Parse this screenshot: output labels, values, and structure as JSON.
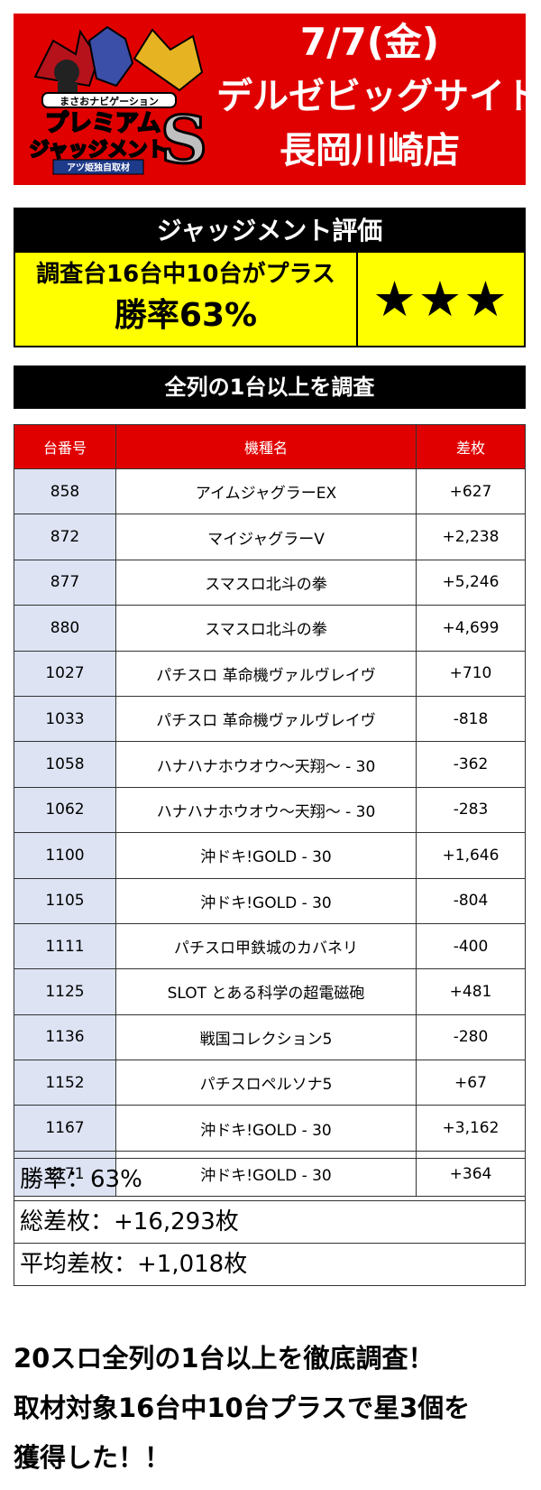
{
  "header": {
    "logo_text_top": "まさおナビゲーション",
    "logo_text_main1": "プレミアム",
    "logo_text_main2": "ジャッジメント",
    "logo_letter": "S",
    "logo_banner": "アツ姫独自取材",
    "date": "7/7(金)",
    "store": "デルゼビッグサイト",
    "branch": "長岡川崎店"
  },
  "judgement": {
    "title": "ジャッジメント評価",
    "line1": "調査台16台中10台がプラス",
    "line2": "勝率63%",
    "stars": "★★★"
  },
  "survey": {
    "title": "全列の1台以上を調査"
  },
  "table": {
    "headers": [
      "台番号",
      "機種名",
      "差枚"
    ],
    "rows": [
      [
        "858",
        "アイムジャグラーEX",
        "+627"
      ],
      [
        "872",
        "マイジャグラーV",
        "+2,238"
      ],
      [
        "877",
        "スマスロ北斗の拳",
        "+5,246"
      ],
      [
        "880",
        "スマスロ北斗の拳",
        "+4,699"
      ],
      [
        "1027",
        "パチスロ 革命機ヴァルヴレイヴ",
        "+710"
      ],
      [
        "1033",
        "パチスロ 革命機ヴァルヴレイヴ",
        "-818"
      ],
      [
        "1058",
        "ハナハナホウオウ～天翔～ - 30",
        "-362"
      ],
      [
        "1062",
        "ハナハナホウオウ～天翔～ - 30",
        "-283"
      ],
      [
        "1100",
        "沖ドキ!GOLD - 30",
        "+1,646"
      ],
      [
        "1105",
        "沖ドキ!GOLD - 30",
        "-804"
      ],
      [
        "1111",
        "パチスロ甲鉄城のカバネリ",
        "-400"
      ],
      [
        "1125",
        "SLOT とある科学の超電磁砲",
        "+481"
      ],
      [
        "1136",
        "戦国コレクション5",
        "-280"
      ],
      [
        "1152",
        "パチスロペルソナ5",
        "+67"
      ],
      [
        "1167",
        "沖ドキ!GOLD - 30",
        "+3,162"
      ],
      [
        "1171",
        "沖ドキ!GOLD - 30",
        "+364"
      ]
    ]
  },
  "summary": {
    "win_rate": "勝率：63%",
    "total": "総差枚：+16,293枚",
    "average": "平均差枚：+1,018枚"
  },
  "footer": {
    "line1": "20スロ全列の1台以上を徹底調査！",
    "line2": "取材対象16台中10台プラスで星3個を",
    "line3": "獲得した！！"
  },
  "colors": {
    "red": "#e00000",
    "yellow": "#ffff00",
    "id_cell": "#dde3f3"
  }
}
